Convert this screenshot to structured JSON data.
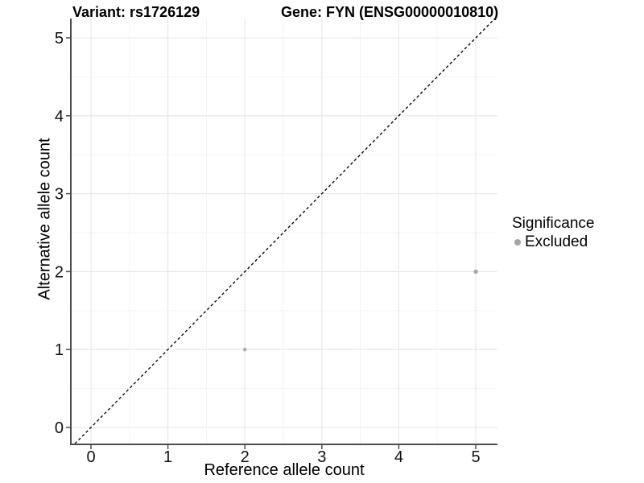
{
  "title": {
    "variant": "Variant: rs1726129",
    "gene": "Gene: FYN (ENSG00000010810)"
  },
  "axes": {
    "x_label": "Reference allele count",
    "y_label": "Alternative allele count"
  },
  "legend": {
    "title": "Significance",
    "items": [
      {
        "label": "Excluded",
        "color": "#a3a3a3",
        "marker": "circle"
      }
    ]
  },
  "colors": {
    "point": "#a8a8a8",
    "grid_major": "#e7e7e7",
    "grid_minor": "#f3f3f3",
    "axis": "#4d4d4d",
    "text": "#111111",
    "diagonal": "#000000",
    "background": "#ffffff"
  },
  "chart_data": {
    "type": "scatter",
    "title": "Variant: rs1726129    Gene: FYN (ENSG00000010810)",
    "xlabel": "Reference allele count",
    "ylabel": "Alternative allele count",
    "xlim": [
      -0.26,
      5.28
    ],
    "ylim": [
      -0.24,
      5.23
    ],
    "x_ticks": [
      0,
      1,
      2,
      3,
      4,
      5
    ],
    "y_ticks": [
      0,
      1,
      2,
      3,
      4,
      5
    ],
    "minor_grid_step": 0.5,
    "grid": "on",
    "legend_position": "right",
    "series": [
      {
        "name": "Excluded",
        "color": "#a8a8a8",
        "points": [
          {
            "x": 2,
            "y": 1,
            "r": 2.2
          },
          {
            "x": 5,
            "y": 2,
            "r": 2.7
          }
        ]
      }
    ],
    "reference_line": {
      "type": "identity",
      "equation": "y = x",
      "style": "dashed",
      "color": "#000000"
    }
  }
}
